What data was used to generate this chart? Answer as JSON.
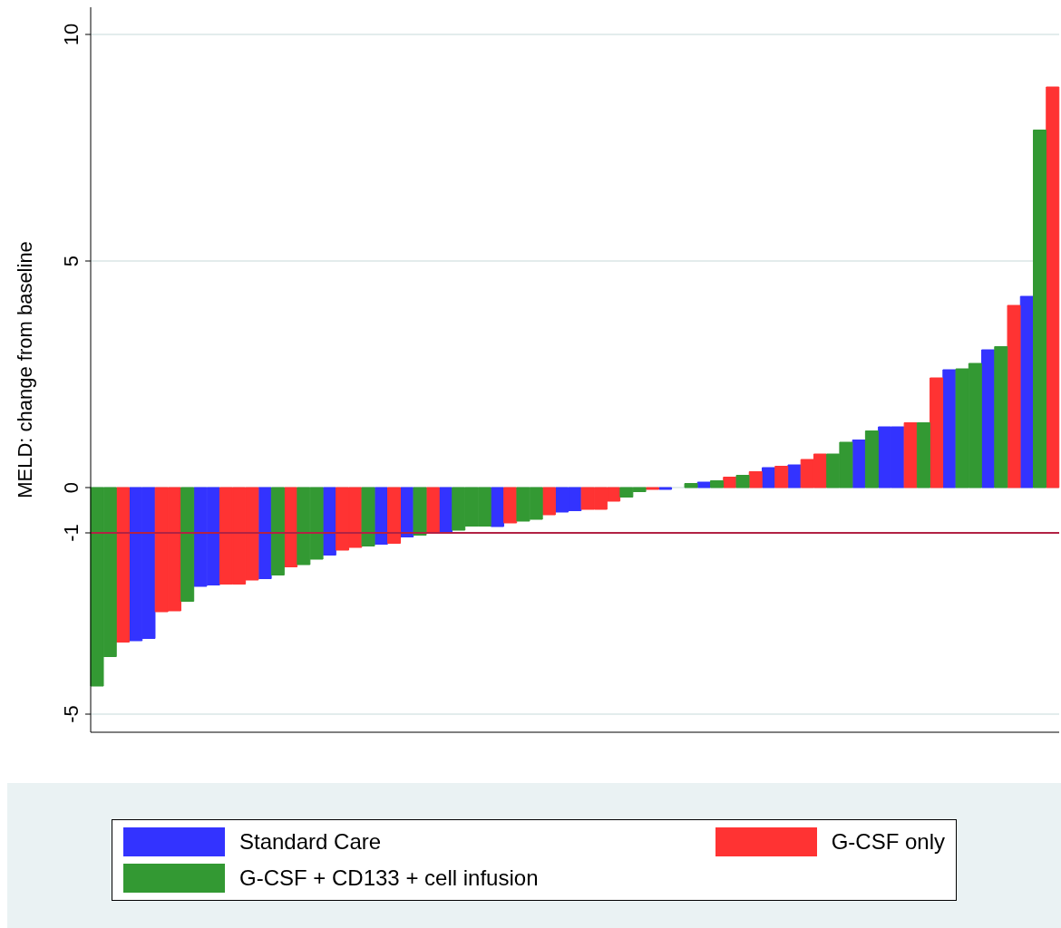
{
  "chart_data": {
    "type": "bar",
    "ylabel": "MELD: change from baseline",
    "stacked": true,
    "categories": [
      null,
      null,
      null,
      null,
      null,
      null,
      null,
      null,
      null,
      null,
      null,
      null,
      null,
      null,
      null,
      null,
      null,
      null,
      null,
      null,
      null,
      null,
      null,
      null,
      null,
      null,
      null,
      null,
      null,
      null,
      null,
      null,
      null,
      null,
      null,
      null,
      null,
      null,
      null,
      null,
      null,
      null,
      null,
      null,
      null,
      null,
      null,
      null,
      null,
      null,
      null,
      null,
      null,
      null,
      null,
      null,
      null,
      null,
      null,
      null,
      null,
      null,
      null,
      null,
      null,
      null,
      null,
      null,
      null,
      null,
      null,
      null,
      null,
      null,
      null
    ],
    "series": [
      {
        "name": "Standard Care",
        "color": "#3333ff",
        "values": [
          null,
          null,
          null,
          -3.38,
          -3.33,
          null,
          null,
          null,
          -2.18,
          -2.15,
          null,
          null,
          null,
          -2.01,
          null,
          null,
          null,
          null,
          -1.49,
          null,
          null,
          null,
          -1.25,
          null,
          -1.09,
          null,
          null,
          -1.0,
          null,
          null,
          null,
          -0.86,
          null,
          null,
          null,
          null,
          -0.54,
          -0.51,
          null,
          null,
          null,
          null,
          null,
          null,
          -0.04,
          null,
          null,
          0.12,
          null,
          null,
          null,
          null,
          0.44,
          null,
          0.5,
          null,
          null,
          null,
          null,
          1.05,
          null,
          1.34,
          1.34,
          null,
          null,
          null,
          2.6,
          null,
          null,
          3.04,
          null,
          null,
          4.22,
          null,
          null
        ]
      },
      {
        "name": "G-CSF only",
        "color": "#ff3333",
        "values": [
          null,
          null,
          -3.41,
          null,
          null,
          -2.74,
          -2.72,
          null,
          null,
          null,
          -2.13,
          -2.13,
          -2.04,
          null,
          null,
          -1.75,
          null,
          null,
          null,
          -1.38,
          -1.32,
          null,
          null,
          -1.23,
          null,
          null,
          -1.0,
          null,
          null,
          null,
          null,
          null,
          -0.78,
          null,
          null,
          -0.6,
          null,
          null,
          -0.48,
          -0.48,
          -0.3,
          null,
          null,
          -0.04,
          null,
          null,
          null,
          null,
          null,
          0.23,
          null,
          0.35,
          null,
          0.47,
          null,
          0.62,
          0.74,
          null,
          null,
          null,
          null,
          null,
          null,
          1.43,
          null,
          2.42,
          null,
          null,
          null,
          null,
          null,
          4.02,
          null,
          null,
          8.84
        ]
      },
      {
        "name": "G-CSF + CD133 + cell infusion",
        "color": "#339933",
        "values": [
          -4.38,
          -3.73,
          null,
          null,
          null,
          null,
          null,
          -2.51,
          null,
          null,
          null,
          null,
          null,
          null,
          -1.93,
          null,
          -1.7,
          -1.58,
          null,
          null,
          null,
          -1.29,
          null,
          null,
          null,
          -1.05,
          null,
          null,
          -0.94,
          -0.85,
          -0.85,
          null,
          null,
          -0.74,
          -0.7,
          null,
          null,
          null,
          null,
          null,
          null,
          -0.21,
          -0.09,
          null,
          null,
          null,
          0.09,
          null,
          0.15,
          null,
          0.27,
          null,
          null,
          null,
          null,
          null,
          null,
          0.74,
          1.0,
          null,
          1.25,
          null,
          null,
          null,
          1.43,
          null,
          null,
          2.62,
          2.74,
          null,
          3.11,
          null,
          null,
          7.89,
          null
        ]
      }
    ],
    "ylim": [
      -5.4,
      10.6
    ],
    "yticks": [
      -5,
      -1,
      0,
      5,
      10
    ],
    "grid": "y",
    "legend": "bottom",
    "ref_lines": [
      {
        "axis": "y",
        "value": -1,
        "color": "#b22244"
      }
    ]
  }
}
